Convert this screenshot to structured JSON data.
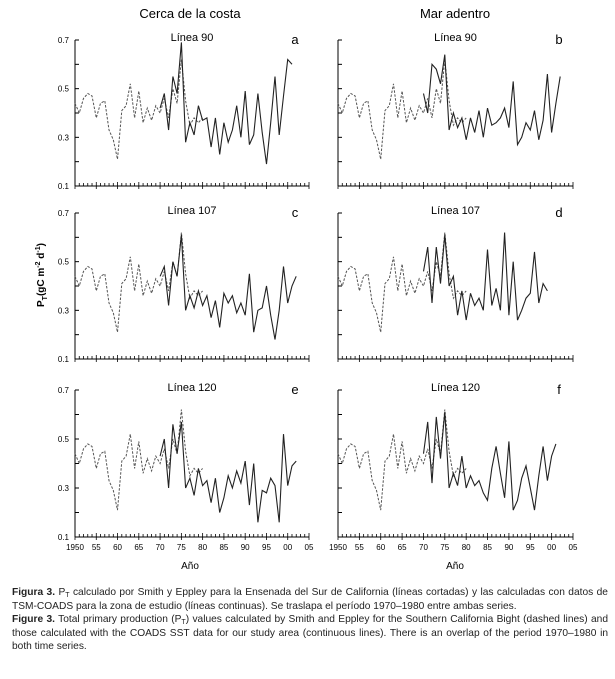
{
  "columns": {
    "left": "Cerca de la costa",
    "right": "Mar adentro"
  },
  "ylabel": {
    "main": "P",
    "sub": "T",
    "unit": "(gC m",
    "exp1": "-2",
    "mid": " d",
    "exp2": "-1",
    "close": ")"
  },
  "xlabel": "Año",
  "chart_data": {
    "type": "line",
    "xlim": [
      1950,
      2005
    ],
    "ylim": [
      0.1,
      0.7
    ],
    "yticks": [
      "0.1",
      "0.3",
      "0.5",
      "0.7"
    ],
    "xticks": [
      "1950",
      "55",
      "60",
      "65",
      "70",
      "75",
      "80",
      "85",
      "90",
      "95",
      "00",
      "05"
    ],
    "legend": {
      "dashed": "Smith y Eppley (líneas cortadas)",
      "solid": "TSM-COADS (líneas continuas)"
    },
    "dashed_series": {
      "x": [
        1950,
        1951,
        1952,
        1953,
        1954,
        1955,
        1956,
        1957,
        1958,
        1959,
        1960,
        1961,
        1962,
        1963,
        1964,
        1965,
        1966,
        1967,
        1968,
        1969,
        1970,
        1971,
        1972,
        1973,
        1974,
        1975,
        1976,
        1977,
        1978,
        1979,
        1980
      ],
      "values": [
        0.44,
        0.4,
        0.46,
        0.48,
        0.47,
        0.38,
        0.44,
        0.45,
        0.33,
        0.29,
        0.21,
        0.41,
        0.43,
        0.52,
        0.38,
        0.49,
        0.36,
        0.42,
        0.37,
        0.43,
        0.4,
        0.46,
        0.38,
        0.5,
        0.44,
        0.62,
        0.45,
        0.35,
        0.38,
        0.36,
        0.38
      ]
    },
    "panels": [
      {
        "id": "a",
        "title": "Línea 90",
        "column": "left",
        "solid_start": 1970,
        "values": [
          0.42,
          0.48,
          0.33,
          0.55,
          0.48,
          0.69,
          0.28,
          0.36,
          0.31,
          0.43,
          0.37,
          0.38,
          0.26,
          0.38,
          0.23,
          0.36,
          0.28,
          0.33,
          0.43,
          0.3,
          0.49,
          0.27,
          0.31,
          0.48,
          0.32,
          0.19,
          0.36,
          0.55,
          0.31,
          0.47,
          0.62,
          0.6
        ]
      },
      {
        "id": "b",
        "title": "Línea 90",
        "column": "right",
        "solid_start": 1970,
        "values": [
          0.48,
          0.4,
          0.6,
          0.58,
          0.52,
          0.64,
          0.33,
          0.4,
          0.34,
          0.38,
          0.29,
          0.38,
          0.32,
          0.41,
          0.3,
          0.42,
          0.35,
          0.36,
          0.38,
          0.42,
          0.34,
          0.53,
          0.27,
          0.3,
          0.36,
          0.33,
          0.41,
          0.29,
          0.37,
          0.56,
          0.32,
          0.44,
          0.55
        ]
      },
      {
        "id": "c",
        "title": "Línea 107",
        "column": "left",
        "solid_start": 1970,
        "values": [
          0.44,
          0.48,
          0.32,
          0.5,
          0.44,
          0.61,
          0.3,
          0.36,
          0.31,
          0.38,
          0.32,
          0.36,
          0.27,
          0.34,
          0.23,
          0.37,
          0.33,
          0.36,
          0.29,
          0.33,
          0.28,
          0.45,
          0.21,
          0.3,
          0.31,
          0.4,
          0.28,
          0.18,
          0.3,
          0.48,
          0.33,
          0.4,
          0.44
        ]
      },
      {
        "id": "d",
        "title": "Línea 107",
        "column": "right",
        "solid_start": 1970,
        "values": [
          0.46,
          0.56,
          0.33,
          0.56,
          0.41,
          0.61,
          0.4,
          0.44,
          0.28,
          0.38,
          0.26,
          0.37,
          0.32,
          0.35,
          0.3,
          0.55,
          0.32,
          0.39,
          0.3,
          0.62,
          0.28,
          0.5,
          0.26,
          0.3,
          0.35,
          0.37,
          0.54,
          0.33,
          0.41,
          0.38
        ]
      },
      {
        "id": "e",
        "title": "Línea 120",
        "column": "left",
        "solid_start": 1970,
        "values": [
          0.43,
          0.5,
          0.3,
          0.56,
          0.44,
          0.57,
          0.3,
          0.34,
          0.27,
          0.38,
          0.31,
          0.33,
          0.24,
          0.34,
          0.2,
          0.26,
          0.35,
          0.3,
          0.37,
          0.32,
          0.41,
          0.23,
          0.4,
          0.16,
          0.29,
          0.28,
          0.34,
          0.31,
          0.16,
          0.52,
          0.31,
          0.39,
          0.41
        ]
      },
      {
        "id": "f",
        "title": "Línea 120",
        "column": "right",
        "solid_start": 1970,
        "values": [
          0.44,
          0.57,
          0.32,
          0.59,
          0.42,
          0.61,
          0.3,
          0.36,
          0.31,
          0.43,
          0.3,
          0.35,
          0.31,
          0.33,
          0.28,
          0.25,
          0.38,
          0.47,
          0.36,
          0.26,
          0.49,
          0.21,
          0.25,
          0.34,
          0.39,
          0.3,
          0.21,
          0.35,
          0.47,
          0.33,
          0.43,
          0.48
        ]
      }
    ]
  },
  "caption": {
    "es_label": "Figura 3.",
    "es_pre": " P",
    "es_sub": "T",
    "es_text": " calculado por Smith y Eppley para la Ensenada del Sur de California (líneas cortadas) y las calculadas con datos de TSM-COADS para la zona de estudio (líneas continuas). Se traslapa el período 1970–1980 entre ambas series.",
    "en_label": "Figure 3.",
    "en_pre": " Total primary production (P",
    "en_sub": "T",
    "en_text": ") values calculated by Smith and Eppley for the Southern California Bight (dashed lines) and those calculated with the COADS SST data for our study area (continuous lines). There is an overlap of the period 1970–1980 in both time series."
  },
  "colors": {
    "dashed": "#555555",
    "solid": "#222222",
    "axis": "#000000"
  }
}
